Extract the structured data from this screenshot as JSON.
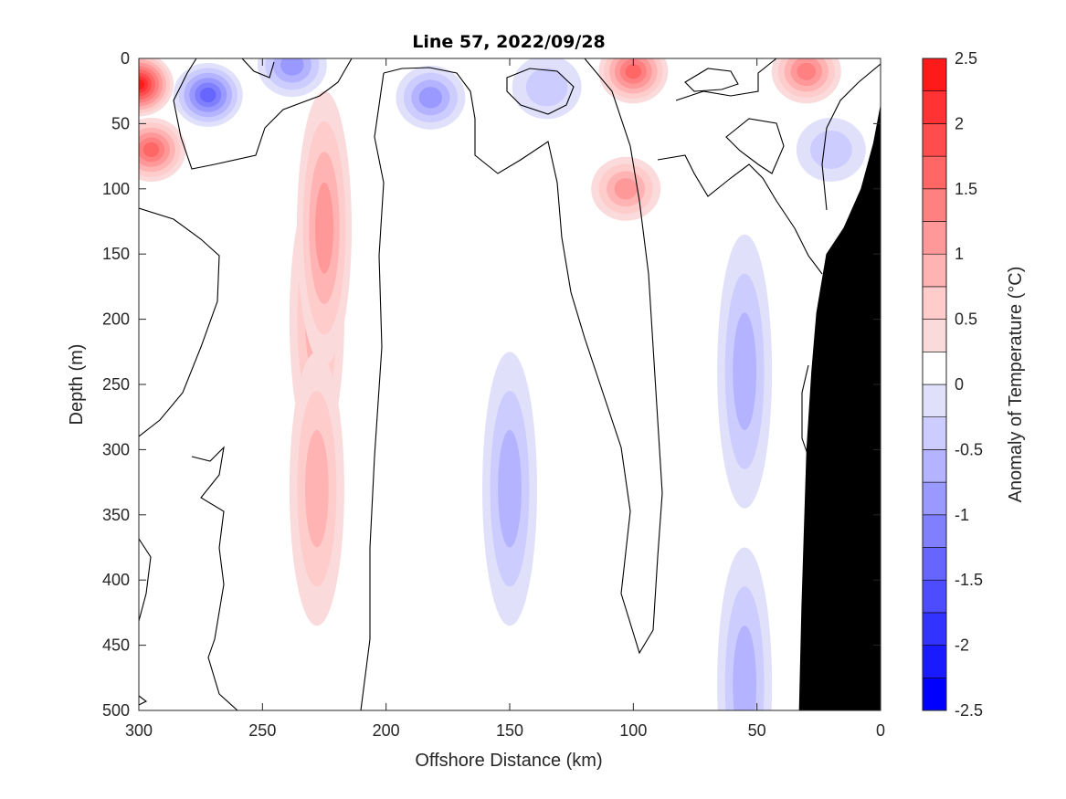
{
  "chart_data": {
    "type": "heatmap",
    "subtype": "filled-contour",
    "title": "Line 57, 2022/09/28",
    "xlabel": "Offshore Distance (km)",
    "ylabel": "Depth (m)",
    "colorbar_label": "Anomaly of Temperature (°C)",
    "xlim": [
      300,
      0
    ],
    "ylim": [
      500,
      0
    ],
    "x_reversed": true,
    "y_reversed": true,
    "x_ticks": [
      300,
      250,
      200,
      150,
      100,
      50,
      0
    ],
    "x_tick_labels": [
      "300",
      "250",
      "200",
      "150",
      "100",
      "50",
      "0"
    ],
    "y_ticks": [
      0,
      50,
      100,
      150,
      200,
      250,
      300,
      350,
      400,
      450,
      500
    ],
    "y_tick_labels": [
      "0",
      "50",
      "100",
      "150",
      "200",
      "250",
      "300",
      "350",
      "400",
      "450",
      "500"
    ],
    "colorbar_ticks": [
      2.5,
      2,
      1.5,
      1,
      0.5,
      0,
      -0.5,
      -1,
      -1.5,
      -2,
      -2.5
    ],
    "colorbar_tick_labels": [
      "2.5",
      "2",
      "1.5",
      "1",
      "0.5",
      "0",
      "-0.5",
      "-1",
      "-1.5",
      "-2",
      "-2.5"
    ],
    "levels": [
      -2.5,
      -2.25,
      -2,
      -1.75,
      -1.5,
      -1.25,
      -1,
      -0.75,
      -0.5,
      -0.25,
      0,
      0.25,
      0.5,
      0.75,
      1,
      1.25,
      1.5,
      1.75,
      2,
      2.25,
      2.5
    ],
    "level_colors": [
      "#0000ff",
      "#1a1aff",
      "#3333ff",
      "#4d4dff",
      "#6666ff",
      "#8080ff",
      "#9999ff",
      "#b3b3ff",
      "#ccccff",
      "#e0e0fa",
      "#ffffff",
      "#ffffff",
      "#fadada",
      "#ffcccc",
      "#ffb3b3",
      "#ff9999",
      "#ff8080",
      "#ff6666",
      "#ff4d4d",
      "#ff3333",
      "#ff1a1a",
      "#ff0000"
    ],
    "zero_contour_color": "#000000",
    "bathymetry_color": "#000000",
    "bathymetry": [
      {
        "x": 0,
        "depth": 35
      },
      {
        "x": 3,
        "depth": 65
      },
      {
        "x": 8,
        "depth": 100
      },
      {
        "x": 15,
        "depth": 130
      },
      {
        "x": 22,
        "depth": 150
      },
      {
        "x": 26,
        "depth": 195
      },
      {
        "x": 28,
        "depth": 240
      },
      {
        "x": 30,
        "depth": 300
      },
      {
        "x": 32,
        "depth": 420
      },
      {
        "x": 33,
        "depth": 500
      }
    ],
    "anomaly_features": [
      {
        "x": 300,
        "depth": 20,
        "anomaly": 2.3
      },
      {
        "x": 295,
        "depth": 70,
        "anomaly": 1.4
      },
      {
        "x": 272,
        "depth": 28,
        "anomaly": -1.6
      },
      {
        "x": 238,
        "depth": 5,
        "anomaly": -0.9
      },
      {
        "x": 228,
        "depth": 200,
        "anomaly": 0.75
      },
      {
        "x": 225,
        "depth": 130,
        "anomaly": 0.9
      },
      {
        "x": 228,
        "depth": 330,
        "anomaly": 0.8
      },
      {
        "x": 182,
        "depth": 30,
        "anomaly": -0.9
      },
      {
        "x": 150,
        "depth": 330,
        "anomaly": -0.85
      },
      {
        "x": 135,
        "depth": 22,
        "anomaly": -0.6
      },
      {
        "x": 100,
        "depth": 10,
        "anomaly": 1.6
      },
      {
        "x": 103,
        "depth": 100,
        "anomaly": 1.1
      },
      {
        "x": 55,
        "depth": 240,
        "anomaly": -0.7
      },
      {
        "x": 55,
        "depth": 480,
        "anomaly": -0.7
      },
      {
        "x": 30,
        "depth": 10,
        "anomaly": 1.2
      },
      {
        "x": 20,
        "depth": 70,
        "anomaly": -0.45
      },
      {
        "x": 85,
        "depth": 300,
        "anomaly": 0.0
      },
      {
        "x": 260,
        "depth": 350,
        "anomaly": 0.0
      }
    ]
  }
}
